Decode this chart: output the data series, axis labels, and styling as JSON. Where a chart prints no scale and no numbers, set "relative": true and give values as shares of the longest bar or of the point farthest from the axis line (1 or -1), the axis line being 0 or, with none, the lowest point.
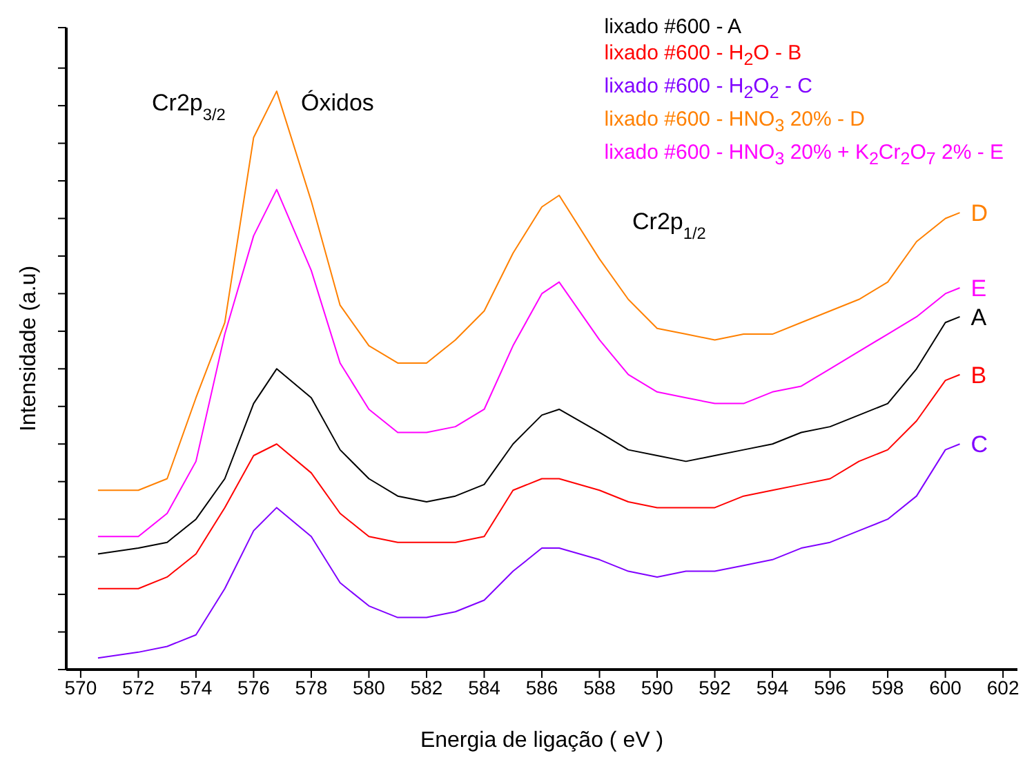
{
  "chart_data": {
    "type": "line",
    "relative": true,
    "xlabel": "Energia de ligação ( eV )",
    "ylabel": "Intensidade (a.u)",
    "x": [
      570.6,
      572,
      573,
      574,
      575,
      576,
      576.8,
      578,
      579,
      580,
      581,
      582,
      583,
      584,
      585,
      586,
      586.6,
      588,
      589,
      590,
      591,
      592,
      593,
      594,
      595,
      596,
      597,
      598,
      599,
      600,
      600.5
    ],
    "xlim": [
      569.5,
      602.5
    ],
    "xticks": [
      570,
      572,
      574,
      576,
      578,
      580,
      582,
      584,
      586,
      588,
      590,
      592,
      594,
      596,
      598,
      600,
      602
    ],
    "series": [
      {
        "name": "lixado #600 - A",
        "color": "#000000",
        "values": [
          0.2,
          0.21,
          0.22,
          0.26,
          0.33,
          0.46,
          0.52,
          0.47,
          0.38,
          0.33,
          0.3,
          0.29,
          0.3,
          0.32,
          0.39,
          0.44,
          0.45,
          0.41,
          0.38,
          0.37,
          0.36,
          0.37,
          0.38,
          0.39,
          0.41,
          0.42,
          0.44,
          0.46,
          0.52,
          0.6,
          0.61
        ]
      },
      {
        "name": "lixado #600 - H$_{2}$O - B",
        "color": "#ff0000",
        "values": [
          0.14,
          0.14,
          0.16,
          0.2,
          0.28,
          0.37,
          0.39,
          0.34,
          0.27,
          0.23,
          0.22,
          0.22,
          0.22,
          0.23,
          0.31,
          0.33,
          0.33,
          0.31,
          0.29,
          0.28,
          0.28,
          0.28,
          0.3,
          0.31,
          0.32,
          0.33,
          0.36,
          0.38,
          0.43,
          0.5,
          0.51
        ]
      },
      {
        "name": "lixado #600 - H$_{2}$O$_{2}$ - C",
        "color": "#8000ff",
        "values": [
          0.02,
          0.03,
          0.04,
          0.06,
          0.14,
          0.24,
          0.28,
          0.23,
          0.15,
          0.11,
          0.09,
          0.09,
          0.1,
          0.12,
          0.17,
          0.21,
          0.21,
          0.19,
          0.17,
          0.16,
          0.17,
          0.17,
          0.18,
          0.19,
          0.21,
          0.22,
          0.24,
          0.26,
          0.3,
          0.38,
          0.39
        ]
      },
      {
        "name": "lixado #600 - HNO$_{3}$ 20% - D",
        "color": "#ff8000",
        "values": [
          0.31,
          0.31,
          0.33,
          0.47,
          0.6,
          0.92,
          1,
          0.81,
          0.63,
          0.56,
          0.53,
          0.53,
          0.57,
          0.62,
          0.72,
          0.8,
          0.82,
          0.71,
          0.64,
          0.59,
          0.58,
          0.57,
          0.58,
          0.58,
          0.6,
          0.62,
          0.64,
          0.67,
          0.74,
          0.78,
          0.79
        ]
      },
      {
        "name": "lixado #600 - HNO$_{3}$ 20% + K$_{2}$Cr$_{2}$O$_{7}$ 2% - E",
        "color": "#ff00ff",
        "values": [
          0.23,
          0.23,
          0.27,
          0.36,
          0.58,
          0.75,
          0.83,
          0.69,
          0.53,
          0.45,
          0.41,
          0.41,
          0.42,
          0.45,
          0.56,
          0.65,
          0.67,
          0.57,
          0.51,
          0.48,
          0.47,
          0.46,
          0.46,
          0.48,
          0.49,
          0.52,
          0.55,
          0.58,
          0.61,
          0.65,
          0.66
        ]
      }
    ],
    "legend": "top right",
    "annotations": [
      "Cr2p$_{3/2}$",
      "Óxidos",
      "Cr2p$_{1/2}$",
      "A",
      "B",
      "C",
      "D",
      "E"
    ]
  }
}
